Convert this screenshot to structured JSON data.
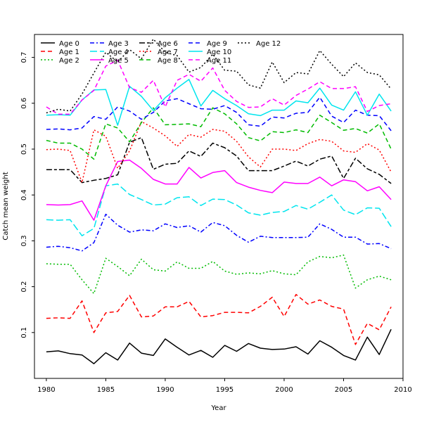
{
  "chart_data": {
    "type": "line",
    "xlabel": "Year",
    "ylabel": "Catch mean weight",
    "xlim": [
      1979,
      2010
    ],
    "ylim": [
      0.0,
      0.75
    ],
    "x_ticks": [
      1980,
      1985,
      1990,
      1995,
      2000,
      2005,
      2010
    ],
    "y_ticks": [
      0.1,
      0.2,
      0.3,
      0.4,
      0.5,
      0.6,
      0.7
    ],
    "legend_position": "top-left",
    "grid": false,
    "x": [
      1980,
      1981,
      1982,
      1983,
      1984,
      1985,
      1986,
      1987,
      1988,
      1989,
      1990,
      1991,
      1992,
      1993,
      1994,
      1995,
      1996,
      1997,
      1998,
      1999,
      2000,
      2001,
      2002,
      2003,
      2004,
      2005,
      2006,
      2007,
      2008,
      2009
    ],
    "series": [
      {
        "name": "Age 0",
        "color": "#000000",
        "dash": "solid",
        "values": [
          0.058,
          0.06,
          0.054,
          0.051,
          0.032,
          0.056,
          0.04,
          0.077,
          0.055,
          0.05,
          0.086,
          0.068,
          0.051,
          0.061,
          0.046,
          0.072,
          0.059,
          0.076,
          0.066,
          0.063,
          0.064,
          0.069,
          0.053,
          0.082,
          0.068,
          0.05,
          0.04,
          0.09,
          0.052,
          0.107
        ]
      },
      {
        "name": "Age 1",
        "color": "#ff0000",
        "dash": "dashed",
        "values": [
          0.131,
          0.132,
          0.131,
          0.169,
          0.1,
          0.143,
          0.146,
          0.181,
          0.134,
          0.136,
          0.156,
          0.156,
          0.168,
          0.134,
          0.137,
          0.144,
          0.144,
          0.143,
          0.157,
          0.177,
          0.135,
          0.183,
          0.162,
          0.171,
          0.157,
          0.151,
          0.074,
          0.12,
          0.106,
          0.156
        ]
      },
      {
        "name": "Age 2",
        "color": "#00bb00",
        "dash": "dotted",
        "values": [
          0.25,
          0.249,
          0.249,
          0.215,
          0.185,
          0.262,
          0.244,
          0.224,
          0.26,
          0.237,
          0.234,
          0.254,
          0.24,
          0.24,
          0.255,
          0.234,
          0.227,
          0.23,
          0.228,
          0.235,
          0.228,
          0.226,
          0.254,
          0.266,
          0.263,
          0.269,
          0.197,
          0.215,
          0.223,
          0.215
        ]
      },
      {
        "name": "Age 3",
        "color": "#0000ff",
        "dash": "dashdot",
        "values": [
          0.286,
          0.288,
          0.285,
          0.278,
          0.296,
          0.358,
          0.334,
          0.319,
          0.324,
          0.322,
          0.337,
          0.329,
          0.333,
          0.319,
          0.34,
          0.333,
          0.312,
          0.297,
          0.31,
          0.307,
          0.307,
          0.307,
          0.308,
          0.337,
          0.325,
          0.308,
          0.308,
          0.293,
          0.294,
          0.283
        ]
      },
      {
        "name": "Age 4",
        "color": "#00e5ee",
        "dash": "longdash",
        "values": [
          0.346,
          0.345,
          0.346,
          0.311,
          0.327,
          0.42,
          0.424,
          0.401,
          0.39,
          0.378,
          0.38,
          0.394,
          0.396,
          0.377,
          0.391,
          0.39,
          0.378,
          0.361,
          0.356,
          0.362,
          0.364,
          0.377,
          0.369,
          0.384,
          0.4,
          0.367,
          0.357,
          0.372,
          0.371,
          0.331
        ]
      },
      {
        "name": "Age 5",
        "color": "#ff00ff",
        "dash": "solid",
        "values": [
          0.379,
          0.378,
          0.379,
          0.387,
          0.345,
          0.42,
          0.473,
          0.476,
          0.458,
          0.434,
          0.424,
          0.424,
          0.46,
          0.437,
          0.449,
          0.453,
          0.427,
          0.417,
          0.41,
          0.405,
          0.428,
          0.425,
          0.425,
          0.439,
          0.42,
          0.433,
          0.429,
          0.409,
          0.418,
          0.39
        ]
      },
      {
        "name": "Age 6",
        "color": "#000000",
        "dash": "twodash",
        "values": [
          0.455,
          0.455,
          0.455,
          0.427,
          0.432,
          0.436,
          0.444,
          0.515,
          0.525,
          0.456,
          0.467,
          0.469,
          0.496,
          0.484,
          0.513,
          0.503,
          0.485,
          0.453,
          0.453,
          0.453,
          0.463,
          0.474,
          0.463,
          0.478,
          0.485,
          0.436,
          0.48,
          0.457,
          0.445,
          0.425
        ]
      },
      {
        "name": "Age 7",
        "color": "#ff0000",
        "dash": "dotted",
        "values": [
          0.499,
          0.5,
          0.497,
          0.427,
          0.542,
          0.528,
          0.458,
          0.496,
          0.56,
          0.546,
          0.529,
          0.506,
          0.532,
          0.526,
          0.543,
          0.539,
          0.517,
          0.483,
          0.461,
          0.5,
          0.5,
          0.497,
          0.512,
          0.521,
          0.517,
          0.496,
          0.493,
          0.512,
          0.498,
          0.45
        ]
      },
      {
        "name": "Age 8",
        "color": "#00bb00",
        "dash": "dashed",
        "values": [
          0.519,
          0.513,
          0.513,
          0.5,
          0.478,
          0.555,
          0.546,
          0.516,
          0.558,
          0.59,
          0.553,
          0.554,
          0.555,
          0.549,
          0.59,
          0.577,
          0.555,
          0.525,
          0.518,
          0.538,
          0.536,
          0.542,
          0.536,
          0.574,
          0.558,
          0.541,
          0.545,
          0.535,
          0.555,
          0.5
        ]
      },
      {
        "name": "Age 9",
        "color": "#0000ff",
        "dash": "dashed",
        "values": [
          0.543,
          0.544,
          0.542,
          0.546,
          0.571,
          0.565,
          0.592,
          0.583,
          0.565,
          0.58,
          0.605,
          0.61,
          0.599,
          0.588,
          0.587,
          0.595,
          0.58,
          0.553,
          0.55,
          0.57,
          0.568,
          0.578,
          0.58,
          0.613,
          0.572,
          0.558,
          0.585,
          0.574,
          0.573,
          0.54
        ]
      },
      {
        "name": "Age 10",
        "color": "#00e5ee",
        "dash": "solid",
        "values": [
          0.574,
          0.575,
          0.574,
          0.607,
          0.629,
          0.63,
          0.552,
          0.637,
          0.615,
          0.584,
          0.612,
          0.633,
          0.652,
          0.594,
          0.628,
          0.61,
          0.595,
          0.577,
          0.573,
          0.585,
          0.585,
          0.605,
          0.601,
          0.633,
          0.596,
          0.585,
          0.625,
          0.574,
          0.62,
          0.583
        ]
      },
      {
        "name": "Age 11",
        "color": "#ff00ff",
        "dash": "dashed",
        "values": [
          0.592,
          0.576,
          0.576,
          0.607,
          0.628,
          0.681,
          0.694,
          0.634,
          0.624,
          0.65,
          0.592,
          0.65,
          0.663,
          0.648,
          0.677,
          0.628,
          0.604,
          0.591,
          0.592,
          0.61,
          0.596,
          0.617,
          0.631,
          0.647,
          0.632,
          0.632,
          0.636,
          0.582,
          0.595,
          0.599
        ]
      },
      {
        "name": "Age 12",
        "color": "#000000",
        "dash": "dotted",
        "values": [
          0.579,
          0.587,
          0.583,
          0.62,
          0.666,
          0.711,
          0.69,
          0.717,
          0.697,
          0.74,
          0.711,
          0.704,
          0.668,
          0.678,
          0.707,
          0.672,
          0.67,
          0.64,
          0.633,
          0.69,
          0.645,
          0.667,
          0.664,
          0.715,
          0.685,
          0.658,
          0.688,
          0.667,
          0.662,
          0.631
        ]
      }
    ]
  }
}
